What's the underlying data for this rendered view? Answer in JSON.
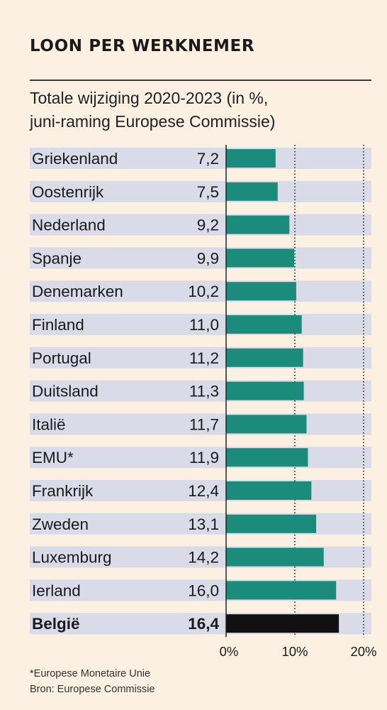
{
  "title": "LOON PER WERKNEMER",
  "subtitle_line1": "Totale wijziging 2020-2023 (in %,",
  "subtitle_line2": "juni-raming Europese Commissie)",
  "footnote": "*Europese Monetaire Unie",
  "source": "Bron: Europese Commissie",
  "colors": {
    "bar": "#1b8b7c",
    "highlight_bar": "#111111",
    "row_band": "#d9dbe8",
    "background": "#fbf0e2"
  },
  "chart_data": {
    "type": "bar",
    "orientation": "horizontal",
    "categories": [
      "Griekenland",
      "Oostenrijk",
      "Nederland",
      "Spanje",
      "Denemarken",
      "Finland",
      "Portugal",
      "Duitsland",
      "Italië",
      "EMU*",
      "Frankrijk",
      "Zweden",
      "Luxemburg",
      "Ierland",
      "België"
    ],
    "value_labels": [
      "7,2",
      "7,5",
      "9,2",
      "9,9",
      "10,2",
      "11,0",
      "11,2",
      "11,3",
      "11,7",
      "11,9",
      "12,4",
      "13,1",
      "14,2",
      "16,0",
      "16,4"
    ],
    "values": [
      7.2,
      7.5,
      9.2,
      9.9,
      10.2,
      11.0,
      11.2,
      11.3,
      11.7,
      11.9,
      12.4,
      13.1,
      14.2,
      16.0,
      16.4
    ],
    "highlight": "België",
    "xlim": [
      0,
      20
    ],
    "xticks": [
      0,
      10,
      20
    ],
    "xtick_labels": [
      "0%",
      "10%",
      "20%"
    ],
    "grid": "dotted vertical at 10% and 20%"
  }
}
